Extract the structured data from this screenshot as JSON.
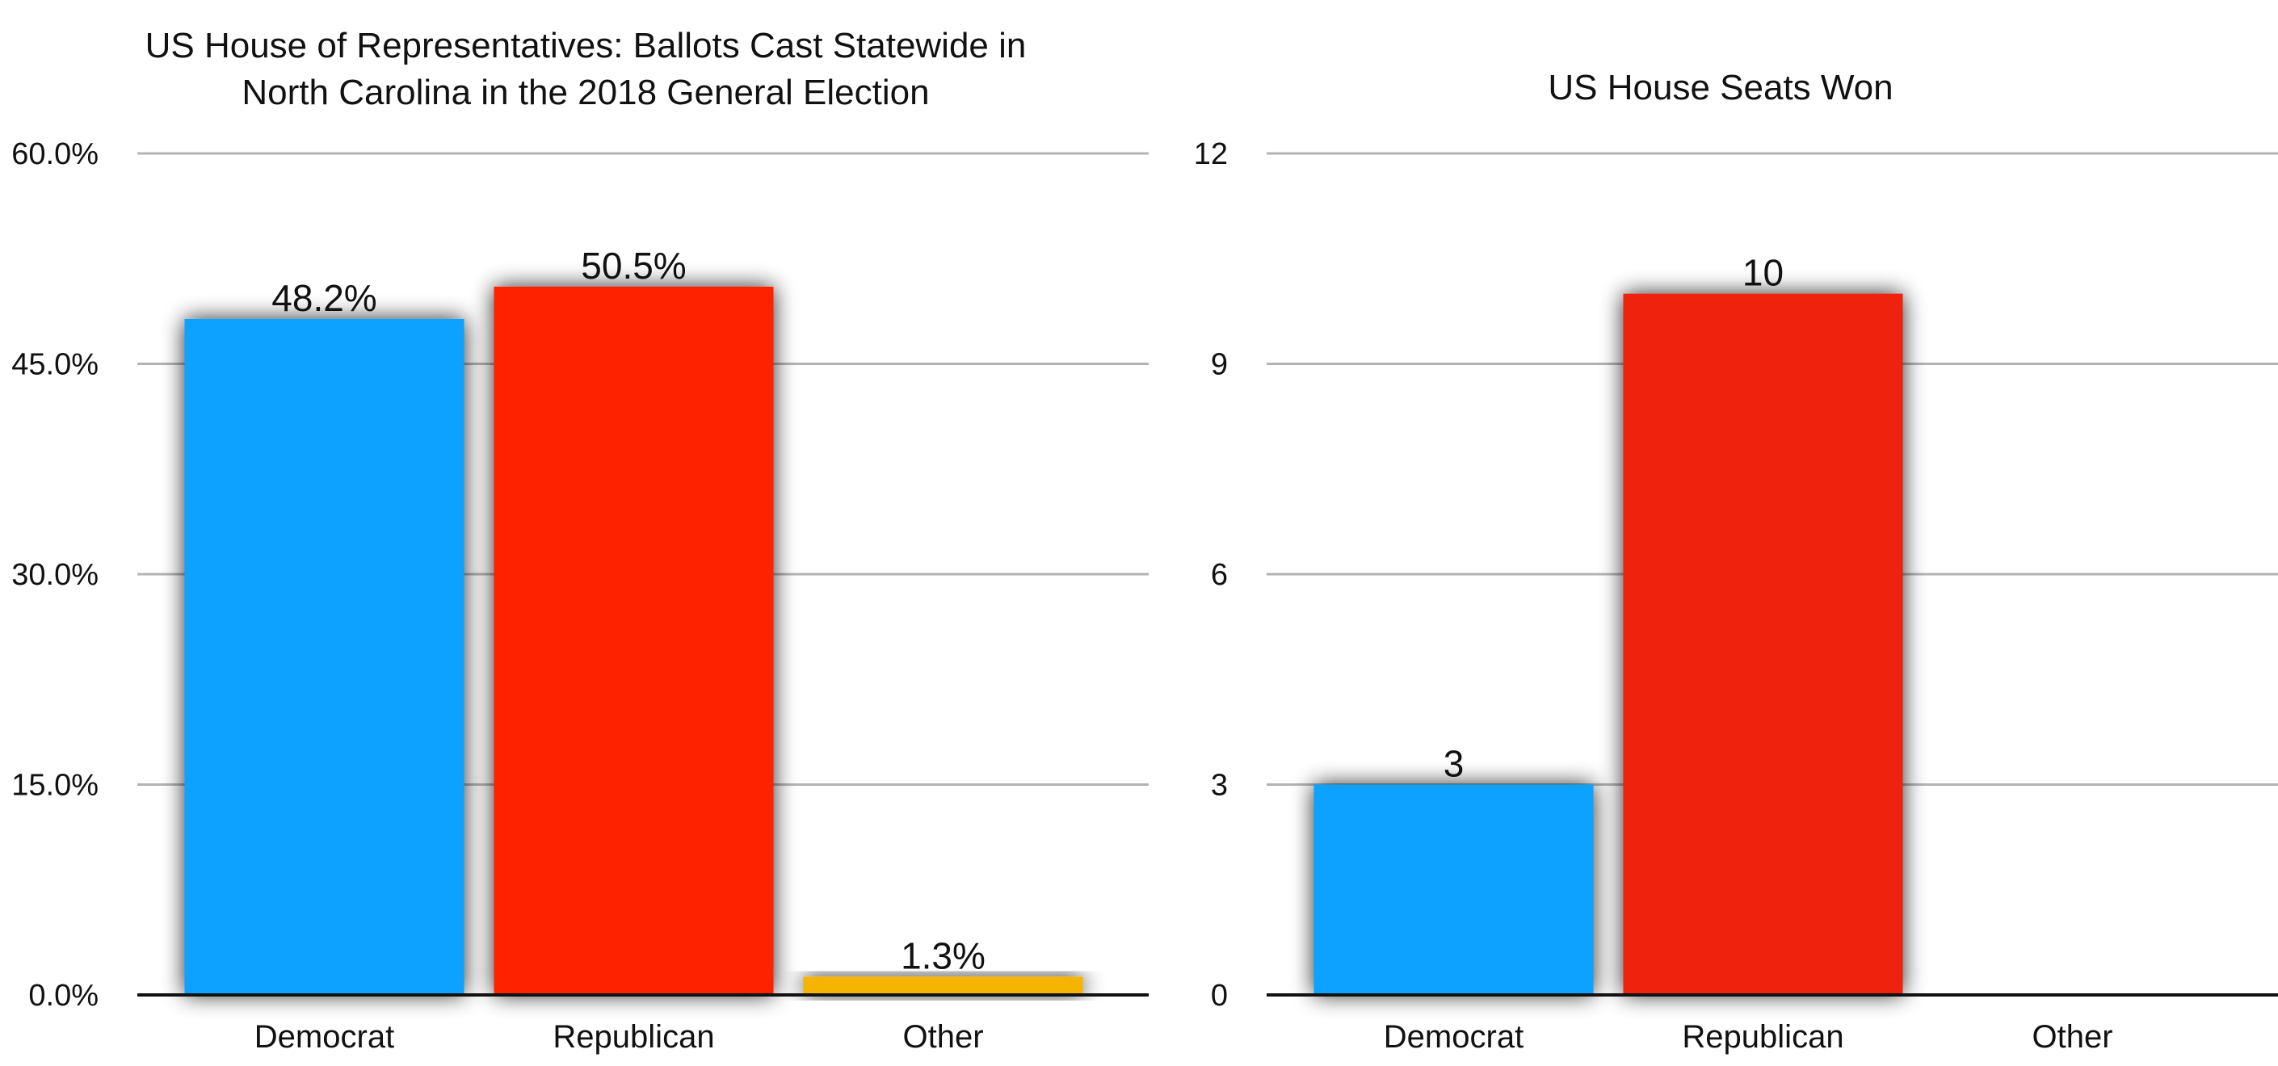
{
  "chart_data": [
    {
      "type": "bar",
      "title": "US House of Representatives: Ballots Cast Statewide in North Carolina in the 2018 General Election",
      "categories": [
        "Democrat",
        "Republican",
        "Other"
      ],
      "values": [
        48.2,
        50.5,
        1.3
      ],
      "data_labels": [
        "48.2%",
        "50.5%",
        "1.3%"
      ],
      "colors": [
        "#0aa2ff",
        "#ff2200",
        "#f5b400"
      ],
      "ylim": [
        0,
        60
      ],
      "yticks": [
        0,
        15,
        30,
        45,
        60
      ],
      "ytick_labels": [
        "0.0%",
        "15.0%",
        "30.0%",
        "45.0%",
        "60.0%"
      ],
      "grid": true,
      "legend": "none"
    },
    {
      "type": "bar",
      "title": "US House Seats Won",
      "categories": [
        "Democrat",
        "Republican",
        "Other"
      ],
      "values": [
        3,
        10,
        0
      ],
      "data_labels": [
        "3",
        "10",
        ""
      ],
      "colors": [
        "#0aa2ff",
        "#ee2211",
        "#f5b400"
      ],
      "ylim": [
        0,
        12
      ],
      "yticks": [
        0,
        3,
        6,
        9,
        12
      ],
      "ytick_labels": [
        "0",
        "3",
        "6",
        "9",
        "12"
      ],
      "grid": true,
      "legend": "none"
    }
  ]
}
